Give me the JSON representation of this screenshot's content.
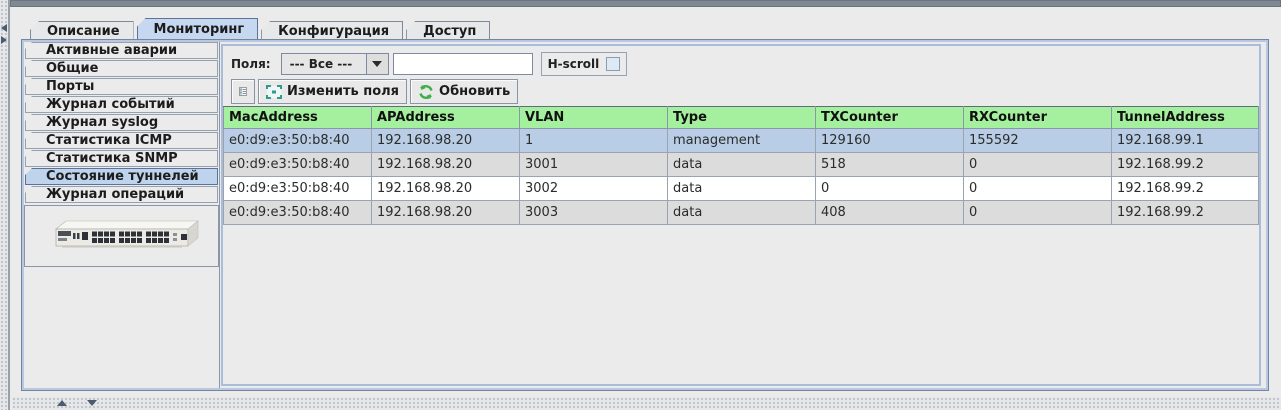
{
  "tabs": [
    {
      "name": "tab-description",
      "label": "Описание",
      "selected": false
    },
    {
      "name": "tab-monitoring",
      "label": "Мониторинг",
      "selected": true
    },
    {
      "name": "tab-configuration",
      "label": "Конфигурация",
      "selected": false
    },
    {
      "name": "tab-access",
      "label": "Доступ",
      "selected": false
    }
  ],
  "sidebar": {
    "items": [
      {
        "name": "sidebar-item-active-alarms",
        "label": "Активные аварии",
        "selected": false
      },
      {
        "name": "sidebar-item-general",
        "label": "Общие",
        "selected": false
      },
      {
        "name": "sidebar-item-ports",
        "label": "Порты",
        "selected": false
      },
      {
        "name": "sidebar-item-event-log",
        "label": "Журнал событий",
        "selected": false
      },
      {
        "name": "sidebar-item-syslog-log",
        "label": "Журнал syslog",
        "selected": false
      },
      {
        "name": "sidebar-item-icmp-stats",
        "label": "Статистика ICMP",
        "selected": false
      },
      {
        "name": "sidebar-item-snmp-stats",
        "label": "Статистика SNMP",
        "selected": false
      },
      {
        "name": "sidebar-item-tunnel-state",
        "label": "Состояние туннелей",
        "selected": true
      },
      {
        "name": "sidebar-item-operations-log",
        "label": "Журнал операций",
        "selected": false
      }
    ]
  },
  "toolbar": {
    "fields_label": "Поля:",
    "fields_value": "--- Все ---",
    "filter_value": "",
    "hscroll_label": "H-scroll",
    "edit_fields_label": "Изменить поля",
    "refresh_label": "Обновить"
  },
  "table": {
    "columns": [
      "MacAddress",
      "APAddress",
      "VLAN",
      "Type",
      "TXCounter",
      "RXCounter",
      "TunnelAddress"
    ],
    "rows": [
      [
        "e0:d9:e3:50:b8:40",
        "192.168.98.20",
        "1",
        "management",
        "129160",
        "155592",
        "192.168.99.1"
      ],
      [
        "e0:d9:e3:50:b8:40",
        "192.168.98.20",
        "3001",
        "data",
        "518",
        "0",
        "192.168.99.2"
      ],
      [
        "e0:d9:e3:50:b8:40",
        "192.168.98.20",
        "3002",
        "data",
        "0",
        "0",
        "192.168.99.2"
      ],
      [
        "e0:d9:e3:50:b8:40",
        "192.168.98.20",
        "3003",
        "data",
        "408",
        "0",
        "192.168.99.2"
      ]
    ],
    "selected_row_index": 0
  },
  "colors": {
    "header_bg": "#a5f09e",
    "selected_row_bg": "#b9cee6",
    "stripe_row_bg": "#dcdcdc",
    "selected_tab_bg": "#c6d7f0",
    "panel_bg": "#ebebeb",
    "refresh_icon_green": "#3fae49",
    "select_icon_teal": "#2f9a8f"
  }
}
